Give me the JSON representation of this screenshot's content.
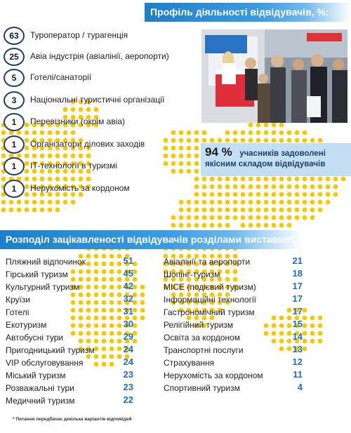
{
  "profile": {
    "title": "Профіль діяльності відвідувачів,  %:",
    "items": [
      {
        "value": "63",
        "label": "Туроператор / турагенція"
      },
      {
        "value": "25",
        "label": "Авіа індустрія (авіалінії,  аеропорти)"
      },
      {
        "value": "5",
        "label": "Готелі/санаторії"
      },
      {
        "value": "3",
        "label": "Національні туристичні організації"
      },
      {
        "value": "1",
        "label": "Перевізники (окрім авіа)"
      },
      {
        "value": "1",
        "label": "Організатори ділових заходів"
      },
      {
        "value": "1",
        "label": "ІТ-технології в туризмі"
      },
      {
        "value": "1",
        "label": "Нерухомість за кордоном"
      }
    ]
  },
  "satisfaction": {
    "percent": "94 %",
    "line1": "учасників задоволені",
    "line2": "якісним складом відвідувачів"
  },
  "interest": {
    "title": "Розподіл зацікавленості  відвідувачів  розділами виставки*, %:",
    "left": [
      {
        "label": "Пляжний відпочинок",
        "value": "51"
      },
      {
        "label": "Гірський туризм",
        "value": "45"
      },
      {
        "label": "Культурний туризм",
        "value": "42"
      },
      {
        "label": "Круїзи",
        "value": "32"
      },
      {
        "label": "Готелі",
        "value": "31"
      },
      {
        "label": "Екотуризм",
        "value": "30"
      },
      {
        "label": "Автобусні тури",
        "value": "29"
      },
      {
        "label": "Пригодницький туризм",
        "value": "24"
      },
      {
        "label": "VIP обслуговування",
        "value": "24"
      },
      {
        "label": "Міський туризм",
        "value": "23"
      },
      {
        "label": "Розважальні тури",
        "value": "23"
      },
      {
        "label": "Медичний туризм",
        "value": "22"
      }
    ],
    "right": [
      {
        "label": "Авіалінії та аеропорти",
        "value": "21"
      },
      {
        "label": "Шопінг-туризм",
        "value": "18"
      },
      {
        "label": "MICE (подієвий туризм)",
        "value": "17"
      },
      {
        "label": "Інформаційні технології",
        "value": "17"
      },
      {
        "label": "Гастрономічний туризм",
        "value": "17"
      },
      {
        "label": "Релігійний туризм",
        "value": "15"
      },
      {
        "label": "Освіта за кордоном",
        "value": "14"
      },
      {
        "label": "Транспортні послуги",
        "value": "13"
      },
      {
        "label": "Страхування",
        "value": "12"
      },
      {
        "label": "Нерухомість за кордоном",
        "value": "11"
      },
      {
        "label": "Спортивний туризм",
        "value": "4"
      }
    ]
  },
  "footnote": "* Питання передбачає декілька варіантів відповідей",
  "colors": {
    "banner": "#1e7fc9",
    "value_blue": "#1f6fb8",
    "circle_border": "#1f3d6e",
    "map_dot": "#f6c800",
    "satisfaction_bg": "#c4dff4"
  }
}
